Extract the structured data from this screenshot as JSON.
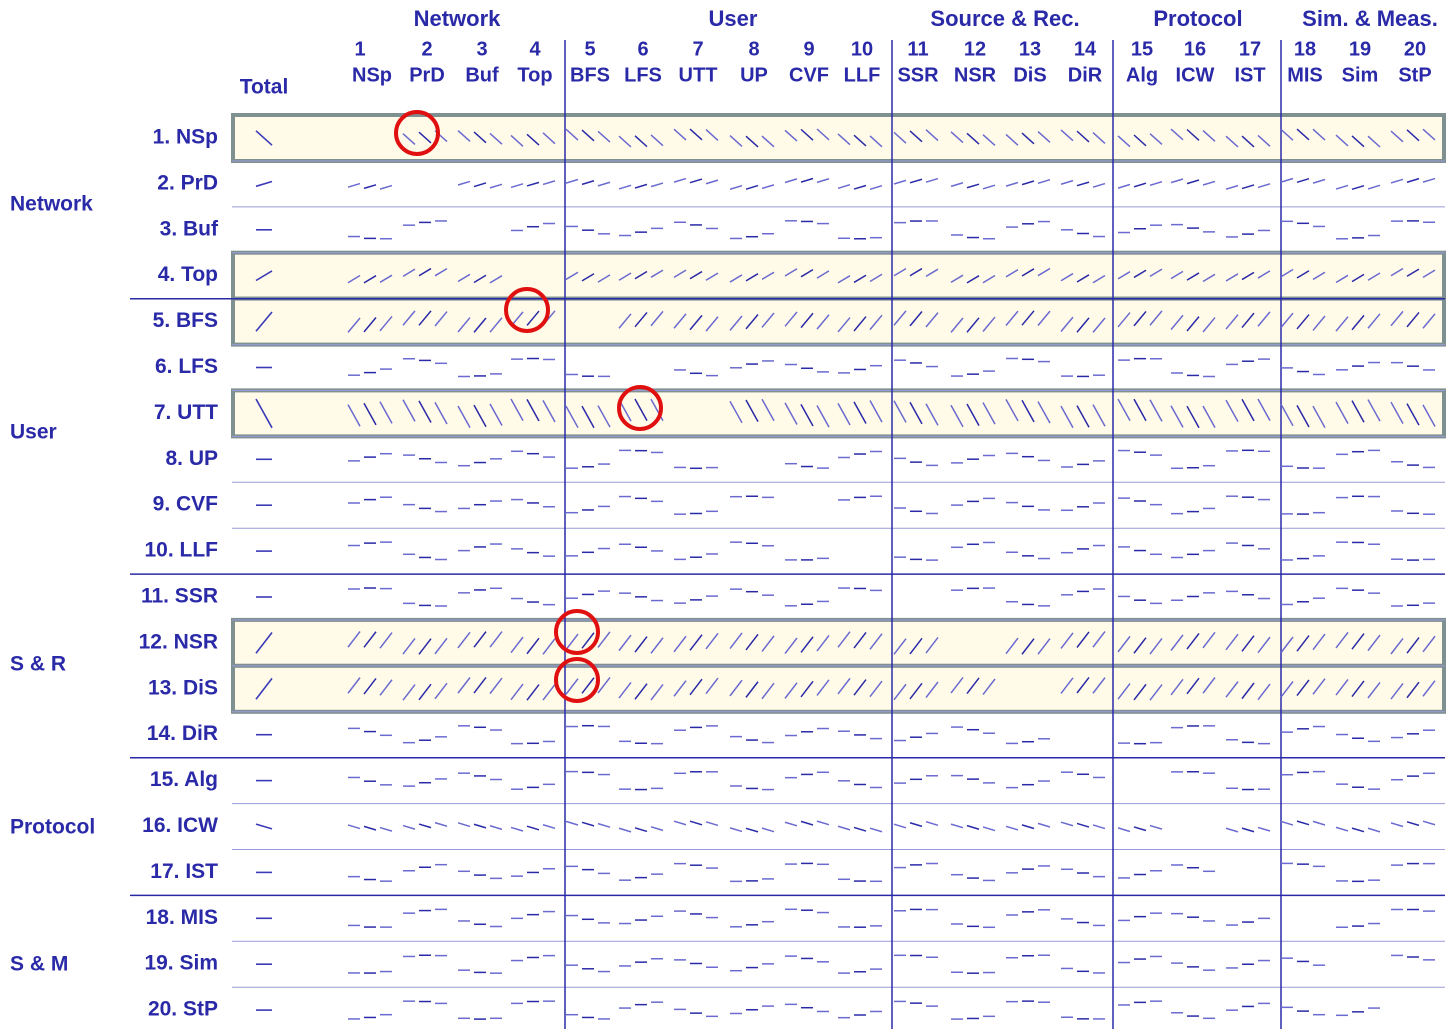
{
  "groups": [
    "Network",
    "User",
    "Source & Rec.",
    "Protocol",
    "Sim. & Meas."
  ],
  "total_label": "Total",
  "columns": [
    {
      "number": "1",
      "label": "NSp"
    },
    {
      "number": "2",
      "label": "PrD"
    },
    {
      "number": "3",
      "label": "Buf"
    },
    {
      "number": "4",
      "label": "Top"
    },
    {
      "number": "5",
      "label": "BFS"
    },
    {
      "number": "6",
      "label": "LFS"
    },
    {
      "number": "7",
      "label": "UTT"
    },
    {
      "number": "8",
      "label": "UP"
    },
    {
      "number": "9",
      "label": "CVF"
    },
    {
      "number": "10",
      "label": "LLF"
    },
    {
      "number": "11",
      "label": "SSR"
    },
    {
      "number": "12",
      "label": "NSR"
    },
    {
      "number": "13",
      "label": "DiS"
    },
    {
      "number": "14",
      "label": "DiR"
    },
    {
      "number": "15",
      "label": "Alg"
    },
    {
      "number": "16",
      "label": "ICW"
    },
    {
      "number": "17",
      "label": "IST"
    },
    {
      "number": "18",
      "label": "MIS"
    },
    {
      "number": "19",
      "label": "Sim"
    },
    {
      "number": "20",
      "label": "StP"
    }
  ],
  "rows": [
    "1. NSp",
    "2. PrD",
    "3. Buf",
    "4. Top",
    "5. BFS",
    "6. LFS",
    "7. UTT",
    "8. UP",
    "9. CVF",
    "10. LLF",
    "11. SSR",
    "12. NSR",
    "13. DiS",
    "14. DiR",
    "15. Alg",
    "16. ICW",
    "17. IST",
    "18. MIS",
    "19. Sim",
    "20. StP"
  ],
  "row_groups": [
    "Network",
    "User",
    "S & R",
    "Protocol",
    "S & M"
  ]
}
